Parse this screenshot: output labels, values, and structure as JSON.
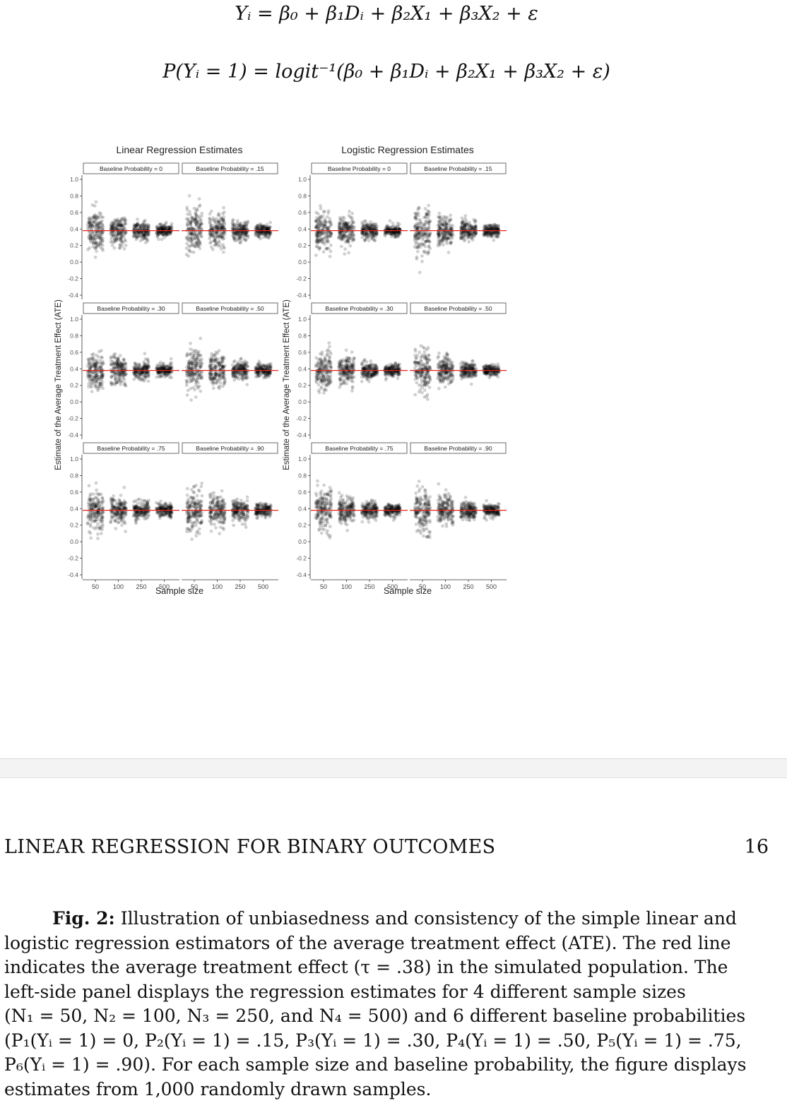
{
  "equations": {
    "linear": "Yᵢ = β₀ + β₁Dᵢ + β₂X₁ + β₃X₂ + ε",
    "logistic": "P(Yᵢ = 1) = logit⁻¹(β₀ + β₁Dᵢ + β₂X₁ + β₃X₂ + ε)"
  },
  "chart_data": [
    {
      "type": "scatter",
      "title": "Linear Regression Estimates",
      "xlabel": "Sample size",
      "ylabel": "Estimate of the Average Treatment Effect (ATE)",
      "ylim": [
        -0.4,
        1.0
      ],
      "yticks": [
        "1.0",
        "0.8",
        "0.6",
        "0.4",
        "0.2",
        "0.0",
        "-0.2",
        "-0.4"
      ],
      "categories": [
        "50",
        "100",
        "250",
        "500"
      ],
      "reference_line": 0.38,
      "reference_color": "#e8231e",
      "facets": [
        {
          "label": "Baseline Probability = 0",
          "spread": [
            0.125,
            0.085,
            0.052,
            0.037
          ]
        },
        {
          "label": "Baseline Probability = .15",
          "spread": [
            0.14,
            0.095,
            0.058,
            0.04
          ]
        },
        {
          "label": "Baseline Probability = .30",
          "spread": [
            0.12,
            0.083,
            0.052,
            0.037
          ]
        },
        {
          "label": "Baseline Probability = .50",
          "spread": [
            0.135,
            0.095,
            0.058,
            0.04
          ]
        },
        {
          "label": "Baseline Probability = .75",
          "spread": [
            0.125,
            0.085,
            0.055,
            0.038
          ]
        },
        {
          "label": "Baseline Probability = .90",
          "spread": [
            0.14,
            0.098,
            0.06,
            0.042
          ]
        }
      ]
    },
    {
      "type": "scatter",
      "title": "Logistic Regression Estimates",
      "xlabel": "Sample size",
      "ylabel": "Estimate of the Average Treatment Effect (ATE)",
      "ylim": [
        -0.4,
        1.0
      ],
      "yticks": [
        "1.0",
        "0.8",
        "0.6",
        "0.4",
        "0.2",
        "0.0",
        "-0.2",
        "-0.4"
      ],
      "categories": [
        "50",
        "100",
        "250",
        "500"
      ],
      "reference_line": 0.38,
      "reference_color": "#e8231e",
      "facets": [
        {
          "label": "Baseline Probability = 0",
          "spread": [
            0.125,
            0.08,
            0.048,
            0.035
          ]
        },
        {
          "label": "Baseline Probability = .15",
          "spread": [
            0.14,
            0.09,
            0.055,
            0.038
          ]
        },
        {
          "label": "Baseline Probability = .30",
          "spread": [
            0.12,
            0.08,
            0.048,
            0.035
          ]
        },
        {
          "label": "Baseline Probability = .50",
          "spread": [
            0.135,
            0.09,
            0.052,
            0.036
          ]
        },
        {
          "label": "Baseline Probability = .75",
          "spread": [
            0.125,
            0.08,
            0.05,
            0.035
          ]
        },
        {
          "label": "Baseline Probability = .90",
          "spread": [
            0.14,
            0.092,
            0.055,
            0.038
          ]
        }
      ]
    }
  ],
  "running_head": "LINEAR REGRESSION FOR BINARY OUTCOMES",
  "page_number": "16",
  "caption": {
    "label": "Fig. 2:",
    "lines": [
      " Illustration of unbiasedness and consistency of the simple linear and",
      "logistic regression estimators of the average treatment effect (ATE). The red line",
      "indicates the average treatment effect (τ = .38) in the simulated population. The",
      "left-side panel displays the regression estimates for 4 different sample sizes",
      "(N₁ = 50, N₂ = 100, N₃ = 250, and N₄ = 500) and 6 different baseline probabilities",
      "(P₁(Yᵢ = 1) = 0, P₂(Yᵢ = 1) = .15, P₃(Yᵢ = 1) = .30, P₄(Yᵢ = 1) = .50, P₅(Yᵢ = 1) = .75,",
      "P₆(Yᵢ = 1) = .90). For each sample size and baseline probability, the figure displays",
      "estimates from 1,000 randomly drawn samples."
    ]
  }
}
